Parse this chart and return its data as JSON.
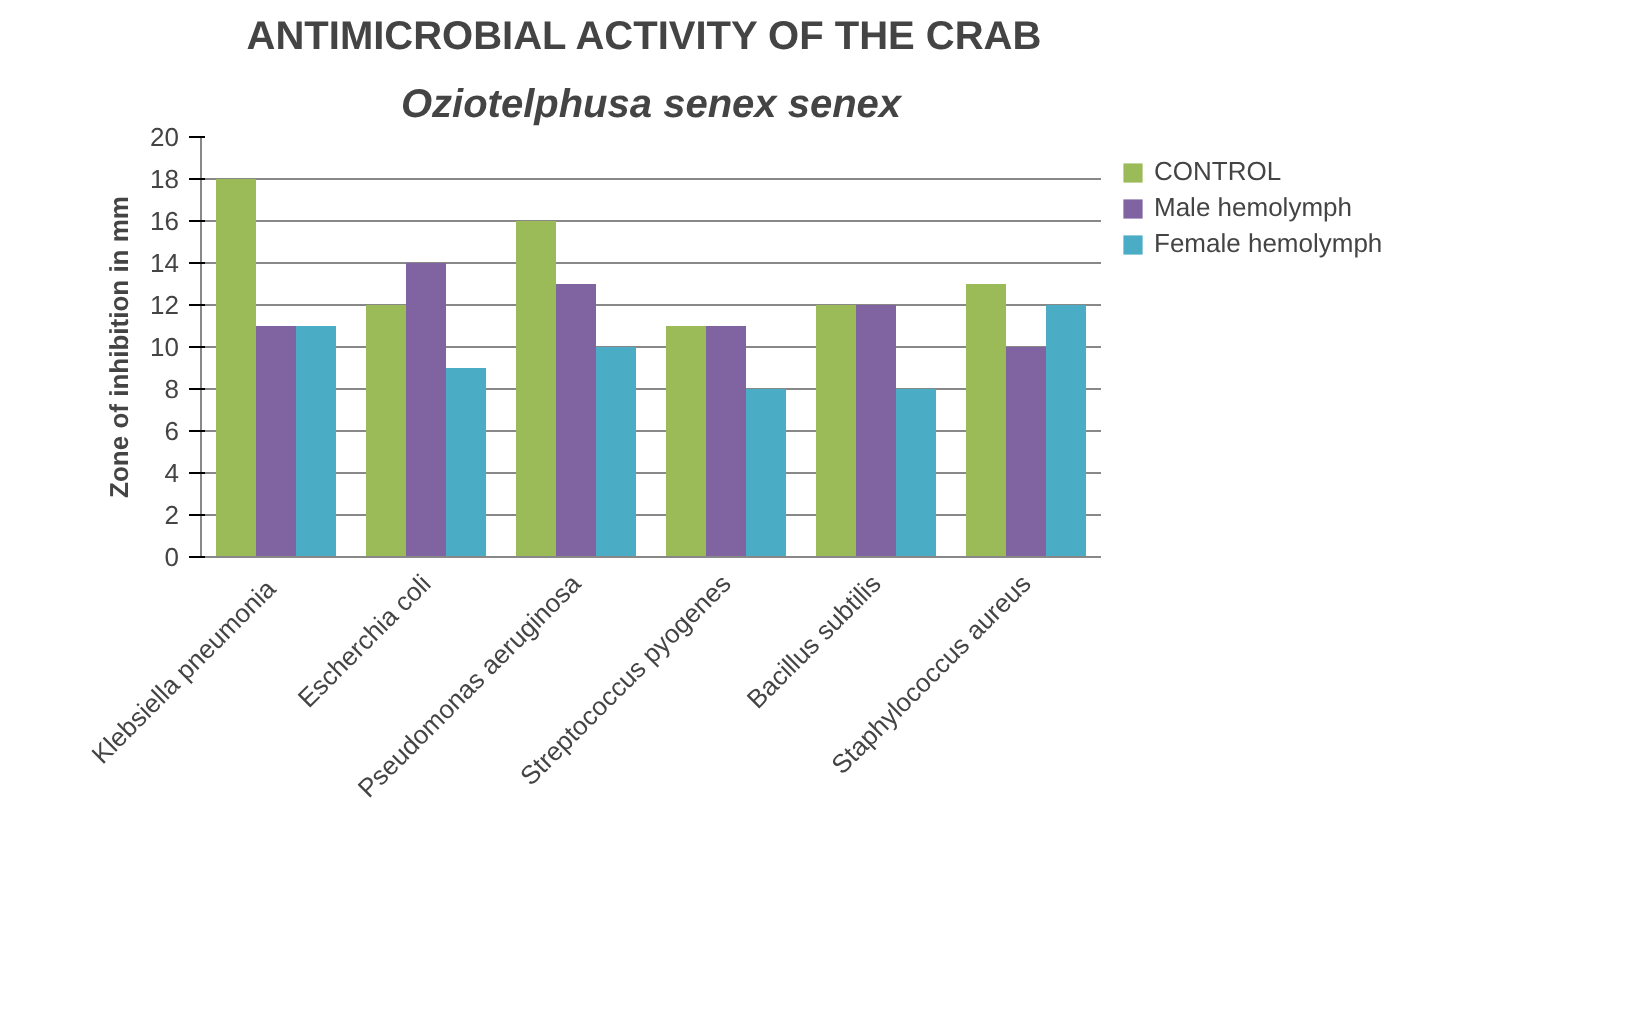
{
  "chart_data": {
    "type": "bar",
    "title": "ANTIMICROBIAL ACTIVITY  OF THE CRAB",
    "subtitle": "Oziotelphusa senex senex",
    "ylabel": "Zone of inhibition in mm",
    "categories": [
      "Klebsiella  pneumonia",
      "Escherchia coli",
      "Pseudomonas aeruginosa",
      "Streptococcus pyogenes",
      "Bacillus subtilis",
      "Staphylococcus aureus"
    ],
    "series": [
      {
        "name": "CONTROL",
        "color": "#9bbb59",
        "values": [
          18,
          12,
          16,
          11,
          12,
          13
        ]
      },
      {
        "name": "Male hemolymph",
        "color": "#8064a2",
        "values": [
          11,
          14,
          13,
          11,
          12,
          10
        ]
      },
      {
        "name": "Female hemolymph",
        "color": "#4bacc6",
        "values": [
          11,
          9,
          10,
          8,
          8,
          12
        ]
      }
    ],
    "ylim": [
      0,
      20
    ],
    "yticks": [
      0,
      2,
      4,
      6,
      8,
      10,
      12,
      14,
      16,
      18,
      20
    ],
    "grid": "y",
    "legend": "right"
  }
}
